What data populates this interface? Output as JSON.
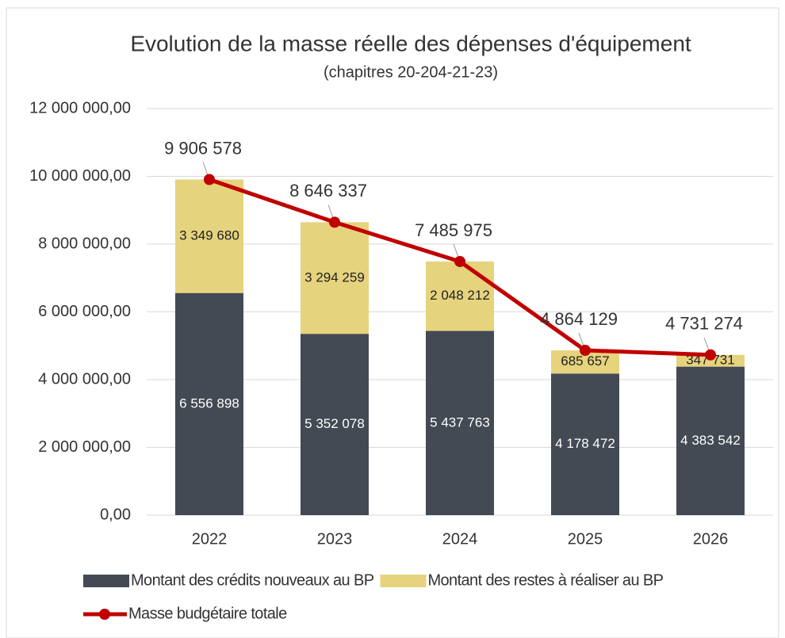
{
  "chart_data": {
    "type": "bar",
    "stacked": true,
    "title": "Evolution de la masse réelle des dépenses d'équipement",
    "subtitle": "(chapitres 20-204-21-23)",
    "categories": [
      "2022",
      "2023",
      "2024",
      "2025",
      "2026"
    ],
    "series": [
      {
        "name": "Montant des crédits nouveaux au BP",
        "type": "bar",
        "color": "#434a54",
        "values": [
          6556898,
          5352078,
          5437763,
          4178472,
          4383542
        ],
        "value_labels": [
          "6 556 898",
          "5 352 078",
          "5 437 763",
          "4 178 472",
          "4 383 542"
        ]
      },
      {
        "name": "Montant des restes à réaliser au BP",
        "type": "bar",
        "color": "#e6d37d",
        "values": [
          3349680,
          3294259,
          2048212,
          685657,
          347731
        ],
        "value_labels": [
          "3 349 680",
          "3 294 259",
          "2 048 212",
          "685 657",
          "347 731"
        ]
      },
      {
        "name": "Masse budgétaire totale",
        "type": "line",
        "color": "#c00000",
        "values": [
          9906578,
          8646337,
          7485975,
          4864129,
          4731274
        ],
        "value_labels": [
          "9 906 578",
          "8 646 337",
          "7 485 975",
          "4 864 129",
          "4 731 274"
        ]
      }
    ],
    "ylim": [
      0,
      12000000
    ],
    "yticks": [
      {
        "value": 0,
        "label": "0,00"
      },
      {
        "value": 2000000,
        "label": "2 000 000,00"
      },
      {
        "value": 4000000,
        "label": "4 000 000,00"
      },
      {
        "value": 6000000,
        "label": "6 000 000,00"
      },
      {
        "value": 8000000,
        "label": "8 000 000,00"
      },
      {
        "value": 10000000,
        "label": "10 000 000,00"
      },
      {
        "value": 12000000,
        "label": "12 000 000,00"
      }
    ],
    "grid": true,
    "legend": "bottom"
  }
}
